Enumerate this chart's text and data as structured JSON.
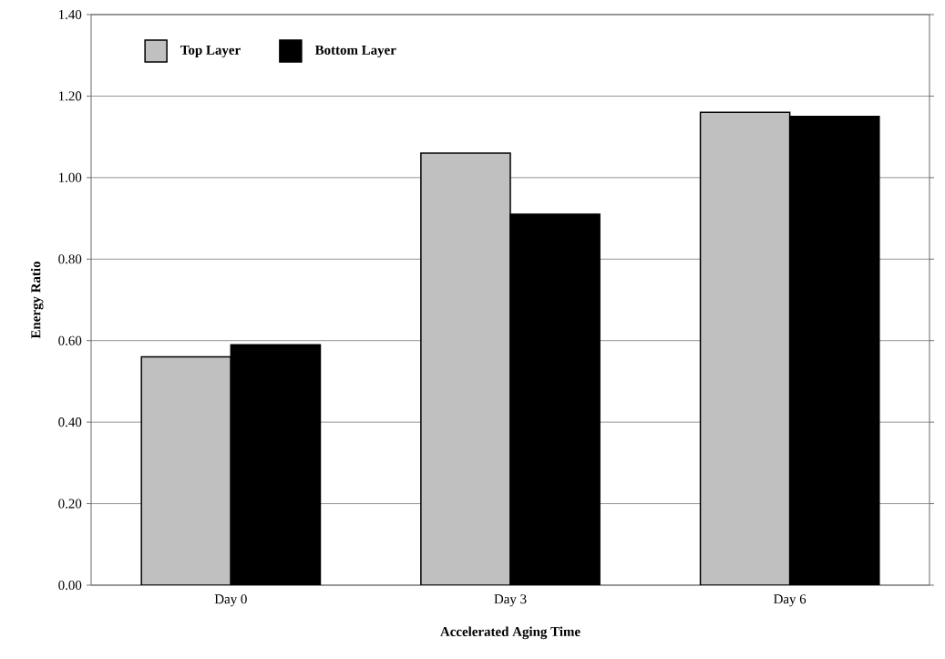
{
  "chart_data": {
    "type": "bar",
    "xlabel": "Accelerated Aging Time",
    "ylabel": "Energy Ratio",
    "categories": [
      "Day 0",
      "Day 3",
      "Day 6"
    ],
    "series": [
      {
        "name": "Top Layer",
        "color": "#c0c0c0",
        "values": [
          0.56,
          1.06,
          1.16
        ]
      },
      {
        "name": "Bottom Layer",
        "color": "#000000",
        "values": [
          0.59,
          0.91,
          1.15
        ]
      }
    ],
    "ylim": [
      0,
      1.4
    ],
    "yticks": [
      {
        "value": 0,
        "label": "0.00"
      },
      {
        "value": 0.2,
        "label": "0.20"
      },
      {
        "value": 0.4,
        "label": "0.40"
      },
      {
        "value": 0.6,
        "label": "0.60"
      },
      {
        "value": 0.8,
        "label": "0.80"
      },
      {
        "value": 1.0,
        "label": "1.00"
      },
      {
        "value": 1.2,
        "label": "1.20"
      },
      {
        "value": 1.4,
        "label": "1.40"
      }
    ],
    "grid": "y",
    "legend": "top left"
  }
}
